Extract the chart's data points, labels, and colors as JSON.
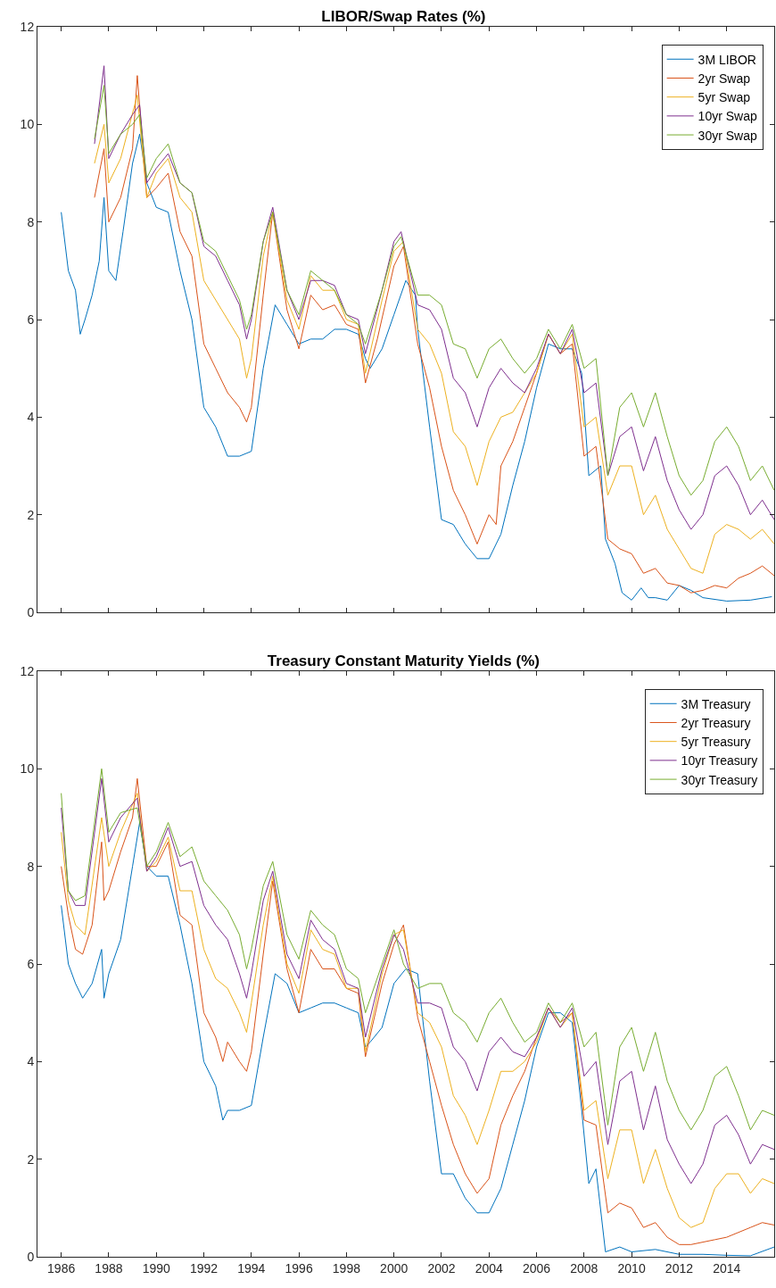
{
  "chart_data": [
    {
      "type": "line",
      "title": "LIBOR/Swap Rates (%)",
      "xlim": [
        1985,
        2016
      ],
      "xticks": [
        1986,
        1988,
        1990,
        1992,
        1994,
        1996,
        1998,
        2000,
        2002,
        2004,
        2006,
        2008,
        2010,
        2012,
        2014
      ],
      "ylim": [
        0,
        12
      ],
      "yticks": [
        0,
        2,
        4,
        6,
        8,
        10,
        12
      ],
      "tick_labels": "y",
      "grid": false,
      "legend": "top right",
      "line_style": "solid",
      "marker": "none",
      "series": [
        {
          "name": "3M LIBOR",
          "color": "#0072bd",
          "x": [
            1986.0,
            1986.3,
            1986.6,
            1986.8,
            1987.0,
            1987.3,
            1987.6,
            1987.8,
            1988.0,
            1988.3,
            1988.6,
            1989.0,
            1989.3,
            1989.6,
            1990.0,
            1990.5,
            1991.0,
            1991.5,
            1992.0,
            1992.5,
            1993.0,
            1993.5,
            1994.0,
            1994.5,
            1995.0,
            1995.5,
            1996.0,
            1996.5,
            1997.0,
            1997.5,
            1998.0,
            1998.5,
            1998.8,
            1999.0,
            1999.5,
            2000.0,
            2000.5,
            2000.9,
            2001.0,
            2001.5,
            2002.0,
            2002.5,
            2003.0,
            2003.5,
            2004.0,
            2004.5,
            2005.0,
            2005.5,
            2006.0,
            2006.5,
            2007.0,
            2007.5,
            2007.9,
            2008.2,
            2008.7,
            2008.9,
            2009.3,
            2009.6,
            2010.0,
            2010.4,
            2010.7,
            2011.0,
            2011.5,
            2012.0,
            2012.5,
            2013.0,
            2014.0,
            2015.0,
            2015.9
          ],
          "values": [
            8.2,
            7.0,
            6.6,
            5.7,
            6.0,
            6.5,
            7.2,
            8.5,
            7.0,
            6.8,
            7.8,
            9.2,
            9.8,
            8.8,
            8.3,
            8.2,
            7.0,
            6.0,
            4.2,
            3.8,
            3.2,
            3.2,
            3.3,
            5.0,
            6.3,
            5.9,
            5.5,
            5.6,
            5.6,
            5.8,
            5.8,
            5.7,
            5.2,
            5.0,
            5.4,
            6.1,
            6.8,
            6.5,
            5.8,
            3.8,
            1.9,
            1.8,
            1.4,
            1.1,
            1.1,
            1.6,
            2.6,
            3.5,
            4.6,
            5.5,
            5.4,
            5.4,
            4.9,
            2.8,
            3.0,
            1.5,
            1.0,
            0.4,
            0.25,
            0.5,
            0.3,
            0.3,
            0.25,
            0.55,
            0.45,
            0.3,
            0.23,
            0.25,
            0.32
          ]
        },
        {
          "name": "2yr Swap",
          "color": "#d95319",
          "x": [
            1987.4,
            1987.8,
            1988.0,
            1988.5,
            1989.0,
            1989.2,
            1989.6,
            1990.0,
            1990.5,
            1991.0,
            1991.5,
            1992.0,
            1992.5,
            1993.0,
            1993.5,
            1993.8,
            1994.0,
            1994.5,
            1994.9,
            1995.5,
            1996.0,
            1996.5,
            1997.0,
            1997.5,
            1998.0,
            1998.5,
            1998.8,
            1999.3,
            2000.0,
            2000.4,
            2001.0,
            2001.5,
            2002.0,
            2002.5,
            2003.0,
            2003.5,
            2004.0,
            2004.3,
            2004.5,
            2005.0,
            2005.5,
            2006.0,
            2006.5,
            2007.0,
            2007.5,
            2008.0,
            2008.5,
            2009.0,
            2009.5,
            2010.0,
            2010.5,
            2011.0,
            2011.5,
            2012.0,
            2012.5,
            2013.0,
            2013.5,
            2014.0,
            2014.5,
            2015.0,
            2015.5,
            2016.0
          ],
          "values": [
            8.5,
            9.5,
            8.0,
            8.5,
            9.5,
            11.0,
            8.5,
            8.7,
            9.0,
            7.8,
            7.3,
            5.5,
            5.0,
            4.5,
            4.2,
            3.9,
            4.2,
            6.5,
            8.2,
            6.2,
            5.4,
            6.5,
            6.2,
            6.3,
            5.9,
            5.8,
            4.7,
            5.6,
            7.1,
            7.5,
            5.5,
            4.6,
            3.4,
            2.5,
            2.0,
            1.4,
            2.0,
            1.8,
            3.0,
            3.5,
            4.2,
            4.9,
            5.7,
            5.3,
            5.5,
            3.2,
            3.4,
            1.5,
            1.3,
            1.2,
            0.8,
            0.9,
            0.6,
            0.55,
            0.4,
            0.45,
            0.55,
            0.5,
            0.7,
            0.8,
            0.95,
            0.75
          ]
        },
        {
          "name": "5yr Swap",
          "color": "#edb120",
          "x": [
            1987.4,
            1987.8,
            1988.0,
            1988.5,
            1989.2,
            1989.6,
            1990.0,
            1990.5,
            1991.0,
            1991.5,
            1992.0,
            1992.5,
            1993.0,
            1993.5,
            1993.8,
            1994.0,
            1994.5,
            1994.9,
            1995.5,
            1996.0,
            1996.5,
            1997.0,
            1997.5,
            1998.0,
            1998.5,
            1998.8,
            1999.5,
            2000.0,
            2000.4,
            2001.0,
            2001.5,
            2002.0,
            2002.5,
            2003.0,
            2003.5,
            2004.0,
            2004.5,
            2005.0,
            2005.5,
            2006.0,
            2006.5,
            2007.0,
            2007.5,
            2008.0,
            2008.5,
            2009.0,
            2009.5,
            2010.0,
            2010.5,
            2011.0,
            2011.5,
            2012.0,
            2012.5,
            2013.0,
            2013.5,
            2014.0,
            2014.5,
            2015.0,
            2015.5,
            2016.0
          ],
          "values": [
            9.2,
            10.0,
            8.8,
            9.3,
            10.6,
            8.5,
            9.0,
            9.3,
            8.5,
            8.2,
            6.8,
            6.4,
            6.0,
            5.6,
            4.8,
            5.2,
            7.3,
            8.2,
            6.4,
            5.8,
            6.9,
            6.6,
            6.6,
            6.0,
            5.9,
            4.9,
            6.4,
            7.4,
            7.6,
            5.8,
            5.5,
            4.9,
            3.7,
            3.4,
            2.6,
            3.5,
            4.0,
            4.1,
            4.5,
            4.9,
            5.7,
            5.3,
            5.7,
            3.8,
            4.0,
            2.4,
            3.0,
            3.0,
            2.0,
            2.4,
            1.7,
            1.3,
            0.9,
            0.8,
            1.6,
            1.8,
            1.7,
            1.5,
            1.7,
            1.4
          ]
        },
        {
          "name": "10yr Swap",
          "color": "#7e2f8e",
          "x": [
            1987.4,
            1987.8,
            1988.0,
            1988.5,
            1989.0,
            1989.3,
            1989.6,
            1990.0,
            1990.5,
            1991.0,
            1991.5,
            1992.0,
            1992.5,
            1993.0,
            1993.5,
            1993.8,
            1994.0,
            1994.5,
            1994.9,
            1995.5,
            1996.0,
            1996.5,
            1997.0,
            1997.5,
            1998.0,
            1998.5,
            1998.8,
            1999.5,
            2000.0,
            2000.3,
            2001.0,
            2001.5,
            2002.0,
            2002.5,
            2003.0,
            2003.5,
            2004.0,
            2004.5,
            2005.0,
            2005.5,
            2006.0,
            2006.5,
            2007.0,
            2007.5,
            2008.0,
            2008.5,
            2009.0,
            2009.5,
            2010.0,
            2010.5,
            2011.0,
            2011.5,
            2012.0,
            2012.5,
            2013.0,
            2013.5,
            2014.0,
            2014.5,
            2015.0,
            2015.5,
            2016.0
          ],
          "values": [
            9.6,
            11.2,
            9.3,
            9.8,
            10.2,
            10.4,
            8.8,
            9.1,
            9.4,
            8.8,
            8.6,
            7.5,
            7.3,
            6.8,
            6.3,
            5.6,
            6.0,
            7.6,
            8.3,
            6.6,
            6.0,
            6.8,
            6.8,
            6.7,
            6.1,
            6.0,
            5.3,
            6.6,
            7.6,
            7.8,
            6.3,
            6.2,
            5.8,
            4.8,
            4.5,
            3.8,
            4.6,
            5.0,
            4.7,
            4.5,
            5.0,
            5.7,
            5.3,
            5.8,
            4.5,
            4.7,
            2.8,
            3.6,
            3.8,
            2.9,
            3.6,
            2.7,
            2.1,
            1.7,
            2.0,
            2.8,
            3.0,
            2.6,
            2.0,
            2.3,
            1.9
          ]
        },
        {
          "name": "30yr Swap",
          "color": "#77ac30",
          "x": [
            1987.4,
            1987.8,
            1988.0,
            1988.5,
            1989.0,
            1989.3,
            1989.6,
            1990.0,
            1990.5,
            1991.0,
            1991.5,
            1992.0,
            1992.5,
            1993.0,
            1993.5,
            1993.8,
            1994.0,
            1994.5,
            1994.9,
            1995.5,
            1996.0,
            1996.5,
            1997.0,
            1997.5,
            1998.0,
            1998.5,
            1998.8,
            1999.5,
            2000.0,
            2000.3,
            2001.0,
            2001.5,
            2002.0,
            2002.5,
            2003.0,
            2003.5,
            2004.0,
            2004.5,
            2005.0,
            2005.5,
            2006.0,
            2006.5,
            2007.0,
            2007.5,
            2008.0,
            2008.5,
            2009.0,
            2009.5,
            2010.0,
            2010.5,
            2011.0,
            2011.5,
            2012.0,
            2012.5,
            2013.0,
            2013.5,
            2014.0,
            2014.5,
            2015.0,
            2015.5,
            2016.0
          ],
          "values": [
            9.7,
            10.8,
            9.4,
            9.8,
            10.0,
            10.2,
            8.9,
            9.3,
            9.6,
            8.8,
            8.6,
            7.6,
            7.4,
            6.9,
            6.4,
            5.8,
            6.1,
            7.6,
            8.2,
            6.6,
            6.1,
            7.0,
            6.8,
            6.6,
            6.1,
            5.9,
            5.5,
            6.6,
            7.5,
            7.7,
            6.5,
            6.5,
            6.3,
            5.5,
            5.4,
            4.8,
            5.4,
            5.6,
            5.2,
            4.9,
            5.2,
            5.8,
            5.4,
            5.9,
            5.0,
            5.2,
            2.8,
            4.2,
            4.5,
            3.8,
            4.5,
            3.6,
            2.8,
            2.4,
            2.7,
            3.5,
            3.8,
            3.4,
            2.7,
            3.0,
            2.5
          ]
        }
      ]
    },
    {
      "type": "line",
      "title": "Treasury Constant Maturity Yields (%)",
      "xlim": [
        1985,
        2016
      ],
      "xticks": [
        1986,
        1988,
        1990,
        1992,
        1994,
        1996,
        1998,
        2000,
        2002,
        2004,
        2006,
        2008,
        2010,
        2012,
        2014
      ],
      "ylim": [
        0,
        12
      ],
      "yticks": [
        0,
        2,
        4,
        6,
        8,
        10,
        12
      ],
      "grid": false,
      "legend": "top right",
      "line_style": "solid",
      "marker": "none",
      "series": [
        {
          "name": "3M Treasury",
          "color": "#0072bd",
          "x": [
            1986.0,
            1986.3,
            1986.6,
            1986.9,
            1987.3,
            1987.7,
            1987.8,
            1988.0,
            1988.5,
            1989.0,
            1989.3,
            1989.6,
            1990.0,
            1990.5,
            1991.0,
            1991.5,
            1992.0,
            1992.5,
            1992.8,
            1993.0,
            1993.5,
            1994.0,
            1994.5,
            1995.0,
            1995.5,
            1996.0,
            1996.5,
            1997.0,
            1997.5,
            1998.0,
            1998.5,
            1998.8,
            1999.0,
            1999.5,
            2000.0,
            2000.5,
            2001.0,
            2001.5,
            2002.0,
            2002.5,
            2003.0,
            2003.5,
            2004.0,
            2004.5,
            2005.0,
            2005.5,
            2006.0,
            2006.5,
            2007.0,
            2007.5,
            2007.9,
            2008.2,
            2008.5,
            2008.9,
            2009.5,
            2010.0,
            2011.0,
            2012.0,
            2013.0,
            2014.0,
            2015.0,
            2016.0
          ],
          "values": [
            7.2,
            6.0,
            5.6,
            5.3,
            5.6,
            6.3,
            5.3,
            5.8,
            6.5,
            8.0,
            8.9,
            8.0,
            7.8,
            7.8,
            6.8,
            5.6,
            4.0,
            3.5,
            2.8,
            3.0,
            3.0,
            3.1,
            4.5,
            5.8,
            5.6,
            5.0,
            5.1,
            5.2,
            5.2,
            5.1,
            5.0,
            4.3,
            4.4,
            4.7,
            5.6,
            5.9,
            5.8,
            3.6,
            1.7,
            1.7,
            1.2,
            0.9,
            0.9,
            1.4,
            2.3,
            3.2,
            4.3,
            5.0,
            5.0,
            4.8,
            3.0,
            1.5,
            1.8,
            0.1,
            0.2,
            0.1,
            0.15,
            0.05,
            0.05,
            0.03,
            0.02,
            0.2
          ]
        },
        {
          "name": "2yr Treasury",
          "color": "#d95319",
          "x": [
            1986.0,
            1986.3,
            1986.6,
            1986.9,
            1987.3,
            1987.7,
            1987.8,
            1988.0,
            1988.5,
            1989.0,
            1989.2,
            1989.6,
            1990.0,
            1990.5,
            1991.0,
            1991.5,
            1992.0,
            1992.5,
            1992.8,
            1993.0,
            1993.5,
            1993.8,
            1994.0,
            1994.5,
            1994.9,
            1995.5,
            1996.0,
            1996.5,
            1997.0,
            1997.5,
            1998.0,
            1998.5,
            1998.8,
            1999.5,
            2000.0,
            2000.4,
            2001.0,
            2001.5,
            2002.0,
            2002.5,
            2003.0,
            2003.5,
            2004.0,
            2004.5,
            2005.0,
            2005.5,
            2006.0,
            2006.5,
            2007.0,
            2007.5,
            2008.0,
            2008.5,
            2009.0,
            2009.5,
            2010.0,
            2010.5,
            2011.0,
            2011.5,
            2012.0,
            2012.5,
            2013.0,
            2013.5,
            2014.0,
            2014.5,
            2015.0,
            2015.5,
            2016.0
          ],
          "values": [
            8.0,
            7.0,
            6.3,
            6.2,
            6.8,
            8.5,
            7.3,
            7.5,
            8.3,
            9.0,
            9.8,
            8.0,
            8.0,
            8.5,
            7.0,
            6.8,
            5.0,
            4.5,
            4.0,
            4.4,
            4.0,
            3.8,
            4.2,
            6.2,
            7.7,
            5.9,
            5.0,
            6.3,
            5.9,
            5.9,
            5.5,
            5.4,
            4.1,
            5.6,
            6.4,
            6.8,
            4.9,
            4.0,
            3.1,
            2.3,
            1.7,
            1.3,
            1.6,
            2.7,
            3.3,
            3.8,
            4.5,
            5.1,
            4.8,
            5.0,
            2.8,
            2.7,
            0.9,
            1.1,
            1.0,
            0.6,
            0.7,
            0.4,
            0.25,
            0.25,
            0.3,
            0.35,
            0.4,
            0.5,
            0.6,
            0.7,
            0.65
          ]
        },
        {
          "name": "5yr Treasury",
          "color": "#edb120",
          "x": [
            1986.0,
            1986.3,
            1986.6,
            1987.0,
            1987.7,
            1988.0,
            1988.5,
            1989.2,
            1989.6,
            1990.0,
            1990.5,
            1991.0,
            1991.5,
            1992.0,
            1992.5,
            1993.0,
            1993.5,
            1993.8,
            1994.0,
            1994.5,
            1994.9,
            1995.5,
            1996.0,
            1996.5,
            1997.0,
            1997.5,
            1998.0,
            1998.5,
            1998.8,
            1999.5,
            2000.0,
            2000.4,
            2001.0,
            2001.5,
            2002.0,
            2002.5,
            2003.0,
            2003.5,
            2004.0,
            2004.5,
            2005.0,
            2005.5,
            2006.0,
            2006.5,
            2007.0,
            2007.5,
            2008.0,
            2008.5,
            2009.0,
            2009.5,
            2010.0,
            2010.5,
            2011.0,
            2011.5,
            2012.0,
            2012.5,
            2013.0,
            2013.5,
            2014.0,
            2014.5,
            2015.0,
            2015.5,
            2016.0
          ],
          "values": [
            8.7,
            7.3,
            6.8,
            6.6,
            9.0,
            8.0,
            8.7,
            9.5,
            7.9,
            8.1,
            8.6,
            7.5,
            7.5,
            6.3,
            5.7,
            5.5,
            5.0,
            4.6,
            5.2,
            6.8,
            7.8,
            6.0,
            5.4,
            6.7,
            6.3,
            6.2,
            5.5,
            5.5,
            4.2,
            5.8,
            6.6,
            6.7,
            5.0,
            4.8,
            4.3,
            3.3,
            2.9,
            2.3,
            3.0,
            3.8,
            3.8,
            4.0,
            4.4,
            5.1,
            4.7,
            5.0,
            3.0,
            3.2,
            1.6,
            2.6,
            2.6,
            1.5,
            2.2,
            1.4,
            0.8,
            0.6,
            0.7,
            1.4,
            1.7,
            1.7,
            1.3,
            1.6,
            1.5
          ]
        },
        {
          "name": "10yr Treasury",
          "color": "#7e2f8e",
          "x": [
            1986.0,
            1986.3,
            1986.6,
            1987.0,
            1987.7,
            1988.0,
            1988.5,
            1989.2,
            1989.6,
            1990.0,
            1990.5,
            1991.0,
            1991.5,
            1992.0,
            1992.5,
            1993.0,
            1993.5,
            1993.8,
            1994.0,
            1994.5,
            1994.9,
            1995.5,
            1996.0,
            1996.5,
            1997.0,
            1997.5,
            1998.0,
            1998.5,
            1998.8,
            1999.5,
            2000.0,
            2000.4,
            2001.0,
            2001.5,
            2002.0,
            2002.5,
            2003.0,
            2003.5,
            2004.0,
            2004.5,
            2005.0,
            2005.5,
            2006.0,
            2006.5,
            2007.0,
            2007.5,
            2008.0,
            2008.5,
            2009.0,
            2009.5,
            2010.0,
            2010.5,
            2011.0,
            2011.5,
            2012.0,
            2012.5,
            2013.0,
            2013.5,
            2014.0,
            2014.5,
            2015.0,
            2015.5,
            2016.0
          ],
          "values": [
            9.2,
            7.5,
            7.2,
            7.2,
            9.8,
            8.5,
            9.0,
            9.4,
            7.9,
            8.2,
            8.8,
            8.0,
            8.1,
            7.2,
            6.8,
            6.5,
            5.8,
            5.3,
            5.8,
            7.3,
            7.9,
            6.2,
            5.7,
            6.9,
            6.5,
            6.3,
            5.6,
            5.5,
            4.5,
            5.9,
            6.6,
            6.3,
            5.2,
            5.2,
            5.1,
            4.3,
            4.0,
            3.4,
            4.2,
            4.5,
            4.2,
            4.1,
            4.5,
            5.1,
            4.7,
            5.1,
            3.7,
            4.0,
            2.3,
            3.6,
            3.8,
            2.6,
            3.5,
            2.4,
            1.9,
            1.5,
            1.9,
            2.7,
            2.9,
            2.5,
            1.9,
            2.3,
            2.2
          ]
        },
        {
          "name": "30yr Treasury",
          "color": "#77ac30",
          "x": [
            1986.0,
            1986.3,
            1986.6,
            1987.0,
            1987.7,
            1988.0,
            1988.5,
            1989.2,
            1989.6,
            1990.0,
            1990.5,
            1991.0,
            1991.5,
            1992.0,
            1992.5,
            1993.0,
            1993.5,
            1993.8,
            1994.0,
            1994.5,
            1994.9,
            1995.5,
            1996.0,
            1996.5,
            1997.0,
            1997.5,
            1998.0,
            1998.5,
            1998.8,
            1999.5,
            2000.0,
            2000.4,
            2001.0,
            2001.5,
            2002.0,
            2002.5,
            2003.0,
            2003.5,
            2004.0,
            2004.5,
            2005.0,
            2005.5,
            2006.0,
            2006.5,
            2007.0,
            2007.5,
            2008.0,
            2008.5,
            2009.0,
            2009.5,
            2010.0,
            2010.5,
            2011.0,
            2011.5,
            2012.0,
            2012.5,
            2013.0,
            2013.5,
            2014.0,
            2014.5,
            2015.0,
            2015.5,
            2016.0
          ],
          "values": [
            9.5,
            7.5,
            7.3,
            7.4,
            10.0,
            8.7,
            9.1,
            9.2,
            8.0,
            8.3,
            8.9,
            8.2,
            8.4,
            7.7,
            7.4,
            7.1,
            6.6,
            5.9,
            6.3,
            7.6,
            8.1,
            6.6,
            6.1,
            7.1,
            6.8,
            6.6,
            5.9,
            5.7,
            5.0,
            6.0,
            6.7,
            6.0,
            5.5,
            5.6,
            5.6,
            5.0,
            4.8,
            4.4,
            5.0,
            5.3,
            4.8,
            4.4,
            4.6,
            5.2,
            4.8,
            5.2,
            4.3,
            4.6,
            2.7,
            4.3,
            4.7,
            3.8,
            4.6,
            3.6,
            3.0,
            2.6,
            3.0,
            3.7,
            3.9,
            3.3,
            2.6,
            3.0,
            2.9
          ]
        }
      ]
    }
  ]
}
